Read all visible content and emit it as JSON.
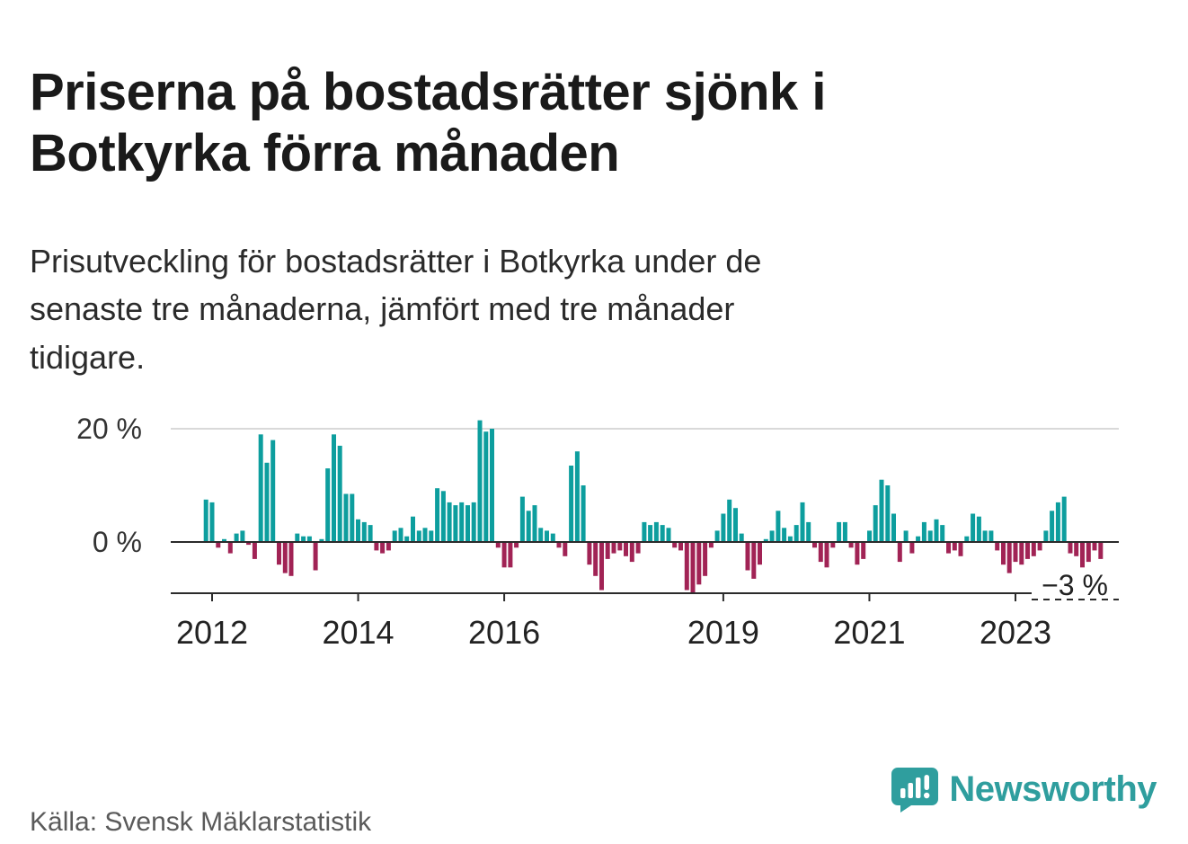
{
  "header": {
    "title_lines": [
      "Priserna på bostadsrätter sjönk i",
      "Botkyrka förra månaden"
    ],
    "subtitle_lines": [
      "Prisutveckling för bostadsrätter i Botkyrka under de",
      "senaste tre månaderna, jämfört med tre månader",
      "tidigare."
    ]
  },
  "footer": {
    "source": "Källa: Svensk Mäklarstatistik",
    "brand": "Newsworthy"
  },
  "chart_data": {
    "type": "bar",
    "title": "",
    "xlabel": "",
    "ylabel": "",
    "unit": "%",
    "frequency": "monthly",
    "start_month": "2011-12",
    "ylim": [
      -9,
      22
    ],
    "grid": "horizontal-20-only",
    "y_ticks": [
      {
        "value": 20,
        "label": "20 %"
      },
      {
        "value": 0,
        "label": "0 %"
      }
    ],
    "x_ticks": [
      2012,
      2014,
      2016,
      2019,
      2021,
      2023
    ],
    "annotation": {
      "label": "−3 %",
      "value": -3,
      "position": "last-bar"
    },
    "colors": {
      "positive": "#0d9e9e",
      "negative": "#a12355",
      "grid": "#d9d9d9",
      "axis": "#2b2b2b",
      "brand": "#2f9e9e"
    },
    "values": [
      7.5,
      7,
      -1,
      0.5,
      -2,
      1.5,
      2,
      -0.5,
      -3,
      19,
      14,
      18,
      -4,
      -5.5,
      -6,
      1.5,
      1,
      1,
      -5,
      0.5,
      13,
      19,
      17,
      8.5,
      8.5,
      4,
      3.5,
      3,
      -1.5,
      -2,
      -1.5,
      2,
      2.5,
      1,
      4.5,
      2,
      2.5,
      2,
      9.5,
      9,
      7,
      6.5,
      7,
      6.5,
      7,
      21.5,
      19.5,
      20,
      -1,
      -4.5,
      -4.5,
      -1,
      8,
      5.5,
      6.5,
      2.5,
      2,
      1.5,
      -1,
      -2.5,
      13.5,
      16,
      10,
      -4,
      -6,
      -8.5,
      -3,
      -2,
      -1.5,
      -2.5,
      -3.5,
      -2,
      3.5,
      3,
      3.5,
      3,
      2.5,
      -1,
      -1.5,
      -8.5,
      -9,
      -7.5,
      -6,
      -1,
      2,
      5,
      7.5,
      6,
      1.5,
      -5,
      -6.5,
      -4,
      0.5,
      2,
      5.5,
      2.5,
      1,
      3,
      7,
      3.5,
      -1,
      -3.5,
      -4.5,
      -1,
      3.5,
      3.5,
      -1,
      -4,
      -3,
      2,
      6.5,
      11,
      10,
      5,
      -3.5,
      2,
      -2,
      1,
      3.5,
      2,
      4,
      3,
      -2,
      -1.5,
      -2.5,
      1,
      5,
      4.5,
      2,
      2,
      -1.5,
      -4,
      -5.5,
      -3.5,
      -4,
      -3,
      -2.5,
      -1.5,
      2,
      5.5,
      7,
      8,
      -2,
      -2.5,
      -4.5,
      -3.5,
      -1.5,
      -3
    ]
  }
}
